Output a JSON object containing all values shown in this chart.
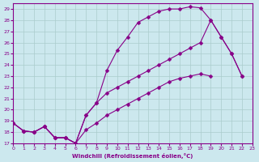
{
  "xlabel": "Windchill (Refroidissement éolien,°C)",
  "bg_color": "#cce8ee",
  "grid_color": "#aacccc",
  "line_color": "#880088",
  "markersize": 2.5,
  "xlim": [
    0,
    23
  ],
  "ylim": [
    17,
    29.5
  ],
  "yticks": [
    17,
    18,
    19,
    20,
    21,
    22,
    23,
    24,
    25,
    26,
    27,
    28,
    29
  ],
  "xticks": [
    0,
    1,
    2,
    3,
    4,
    5,
    6,
    7,
    8,
    9,
    10,
    11,
    12,
    13,
    14,
    15,
    16,
    17,
    18,
    19,
    20,
    21,
    22,
    23
  ],
  "series": [
    {
      "x": [
        0,
        1,
        2,
        3,
        4,
        5,
        6,
        7,
        8,
        9,
        10,
        11,
        12,
        13,
        14,
        15,
        16,
        17,
        18,
        19,
        20,
        21,
        22
      ],
      "y": [
        18.8,
        18.1,
        18.0,
        18.5,
        17.5,
        17.5,
        17.0,
        19.5,
        20.6,
        23.5,
        25.3,
        26.5,
        27.8,
        28.3,
        28.8,
        29.0,
        29.0,
        29.2,
        29.1,
        28.0,
        26.5,
        25.0,
        23.0
      ]
    },
    {
      "x": [
        0,
        1,
        2,
        3,
        4,
        5,
        6,
        7,
        8,
        9,
        10,
        11,
        12,
        13,
        14,
        15,
        16,
        17,
        18,
        19
      ],
      "y": [
        18.8,
        18.1,
        18.0,
        18.5,
        17.5,
        17.5,
        17.0,
        18.2,
        18.8,
        19.5,
        20.0,
        20.5,
        21.0,
        21.5,
        22.0,
        22.5,
        22.8,
        23.0,
        23.2,
        23.0
      ]
    },
    {
      "x": [
        0,
        1,
        2,
        3,
        4,
        5,
        6,
        7,
        8,
        9,
        10,
        11,
        12,
        13,
        14,
        15,
        16,
        17,
        18,
        19,
        20,
        21,
        22
      ],
      "y": [
        18.8,
        18.1,
        18.0,
        18.5,
        17.5,
        17.5,
        17.0,
        19.5,
        20.6,
        21.5,
        22.0,
        22.5,
        23.0,
        23.5,
        24.0,
        24.5,
        25.0,
        25.5,
        26.0,
        28.0,
        26.5,
        25.0,
        23.0
      ]
    }
  ]
}
